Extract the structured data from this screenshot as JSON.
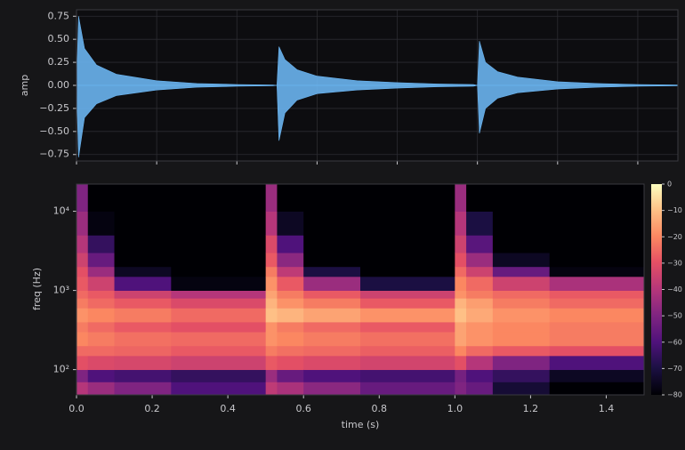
{
  "chart_data": [
    {
      "type": "area",
      "ylabel": "amp",
      "x": [
        0,
        0.005,
        0.02,
        0.05,
        0.1,
        0.2,
        0.3,
        0.4,
        0.49,
        0.5,
        0.505,
        0.52,
        0.55,
        0.6,
        0.7,
        0.8,
        0.9,
        0.99,
        1.0,
        1.005,
        1.02,
        1.05,
        1.1,
        1.2,
        1.3,
        1.4,
        1.5
      ],
      "series": [
        {
          "color": "#6ab4f0",
          "values": [
            0,
            0.75,
            0.4,
            0.22,
            0.12,
            0.05,
            0.02,
            0.01,
            0.005,
            0,
            0.42,
            0.28,
            0.17,
            0.1,
            0.05,
            0.03,
            0.015,
            0.01,
            0,
            0.48,
            0.25,
            0.15,
            0.09,
            0.04,
            0.02,
            0.01,
            0.005
          ]
        },
        {
          "color": "#6ab4f0",
          "values": [
            0,
            -0.78,
            -0.35,
            -0.2,
            -0.11,
            -0.05,
            -0.02,
            -0.01,
            -0.005,
            0,
            -0.6,
            -0.3,
            -0.16,
            -0.09,
            -0.05,
            -0.03,
            -0.015,
            -0.01,
            0,
            -0.52,
            -0.25,
            -0.14,
            -0.08,
            -0.04,
            -0.02,
            -0.01,
            -0.005
          ]
        }
      ],
      "xlim": [
        0,
        1.5
      ],
      "xticks": [
        0,
        0.2,
        0.4,
        0.6,
        0.8,
        1.0,
        1.2,
        1.4
      ],
      "ylim": [
        -0.82,
        0.82
      ],
      "yticks": [
        {
          "value": -0.75,
          "label": "−0.75"
        },
        {
          "value": -0.5,
          "label": "−0.50"
        },
        {
          "value": -0.25,
          "label": "−0.25"
        },
        {
          "value": 0,
          "label": "0.00"
        },
        0.25,
        {
          "value": 0.5,
          "label": "0.50"
        },
        0.75
      ],
      "grid": true
    },
    {
      "type": "heatmap",
      "xlabel": "time (s)",
      "ylabel": "freq (Hz)",
      "colormap": "magma",
      "yscale": "log",
      "x_edges": [
        0,
        0.03,
        0.1,
        0.25,
        0.5,
        0.53,
        0.6,
        0.75,
        1.0,
        1.03,
        1.1,
        1.25,
        1.5
      ],
      "y_edges": [
        48,
        70,
        100,
        150,
        200,
        300,
        400,
        600,
        800,
        1000,
        1500,
        2000,
        3000,
        5000,
        10000,
        22050
      ],
      "z": [
        [
          -40,
          -50,
          -30,
          -25,
          -20,
          -22,
          -18,
          -22,
          -25,
          -28,
          -30,
          -35,
          -40,
          -45,
          -50
        ],
        [
          -45,
          -60,
          -32,
          -25,
          -22,
          -25,
          -20,
          -25,
          -28,
          -35,
          -45,
          -55,
          -65,
          -78,
          -80
        ],
        [
          -50,
          -62,
          -33,
          -26,
          -24,
          -28,
          -22,
          -28,
          -35,
          -60,
          -75,
          -80,
          -80,
          -80,
          -80
        ],
        [
          -60,
          -65,
          -35,
          -28,
          -25,
          -30,
          -25,
          -32,
          -40,
          -78,
          -80,
          -80,
          -80,
          -80,
          -80
        ],
        [
          -38,
          -45,
          -28,
          -22,
          -18,
          -18,
          -10,
          -12,
          -15,
          -18,
          -22,
          -28,
          -32,
          -40,
          -45
        ],
        [
          -42,
          -55,
          -30,
          -24,
          -20,
          -22,
          -12,
          -18,
          -22,
          -28,
          -38,
          -48,
          -60,
          -75,
          -80
        ],
        [
          -48,
          -60,
          -32,
          -25,
          -22,
          -25,
          -15,
          -22,
          -28,
          -45,
          -70,
          -80,
          -80,
          -80,
          -80
        ],
        [
          -55,
          -62,
          -34,
          -27,
          -24,
          -28,
          -18,
          -28,
          -35,
          -70,
          -80,
          -80,
          -80,
          -80,
          -80
        ],
        [
          -50,
          -52,
          -30,
          -20,
          -15,
          -15,
          -10,
          -12,
          -18,
          -20,
          -25,
          -30,
          -35,
          -40,
          -45
        ],
        [
          -55,
          -60,
          -40,
          -25,
          -18,
          -18,
          -14,
          -16,
          -22,
          -25,
          -35,
          -45,
          -58,
          -70,
          -80
        ],
        [
          -72,
          -65,
          -50,
          -28,
          -20,
          -20,
          -18,
          -22,
          -25,
          -35,
          -55,
          -75,
          -80,
          -80,
          -80
        ],
        [
          -80,
          -75,
          -60,
          -30,
          -22,
          -22,
          -20,
          -25,
          -28,
          -42,
          -78,
          -80,
          -80,
          -80,
          -80
        ]
      ],
      "xlim": [
        0,
        1.5
      ],
      "xticks": [
        {
          "value": 0,
          "label": "0.0"
        },
        0.2,
        0.4,
        0.6,
        0.8,
        {
          "value": 1,
          "label": "1.0"
        },
        1.2,
        1.4
      ],
      "ylim": [
        48,
        22050
      ],
      "yticks": [
        {
          "value": 100,
          "label": "10²"
        },
        {
          "value": 1000,
          "label": "10³"
        },
        {
          "value": 10000,
          "label": "10⁴"
        }
      ],
      "zlim": [
        -80,
        0
      ],
      "colorbar_ticks": [
        0,
        {
          "value": -10,
          "label": "−10"
        },
        {
          "value": -20,
          "label": "−20"
        },
        {
          "value": -30,
          "label": "−30"
        },
        {
          "value": -40,
          "label": "−40"
        },
        {
          "value": -50,
          "label": "−50"
        },
        {
          "value": -60,
          "label": "−60"
        },
        {
          "value": -70,
          "label": "−70"
        },
        {
          "value": -80,
          "label": "−80"
        }
      ]
    }
  ]
}
